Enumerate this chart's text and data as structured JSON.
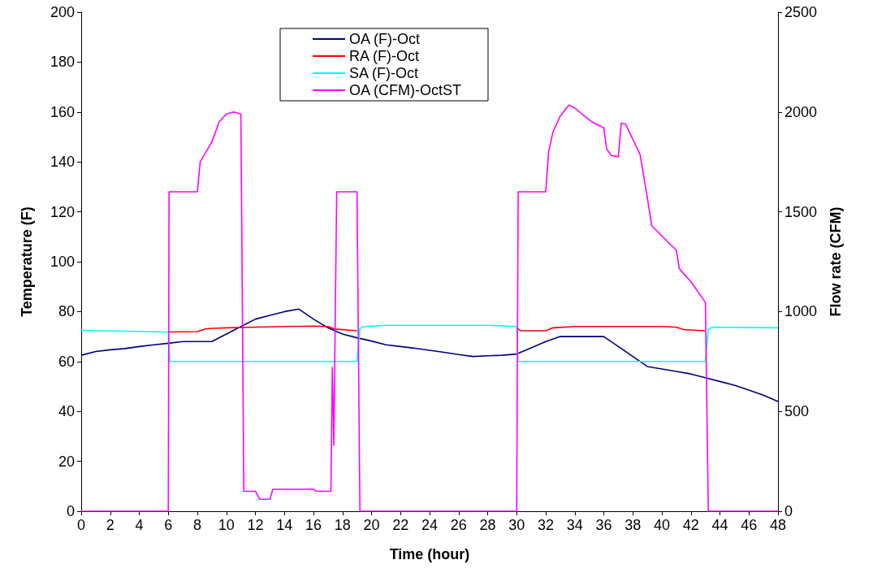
{
  "chart_data": {
    "type": "line",
    "xlabel": "Time (hour)",
    "ylabel": "Temperature (F)",
    "y2label": "Flow rate (CFM)",
    "xlim": [
      0,
      48
    ],
    "xticks": [
      0,
      2,
      4,
      6,
      8,
      10,
      12,
      14,
      16,
      18,
      20,
      22,
      24,
      26,
      28,
      30,
      32,
      34,
      36,
      38,
      40,
      42,
      44,
      46,
      48
    ],
    "ylim": [
      0,
      200
    ],
    "yticks": [
      0,
      20,
      40,
      60,
      80,
      100,
      120,
      140,
      160,
      180,
      200
    ],
    "y2lim": [
      0,
      2500
    ],
    "y2ticks": [
      0,
      500,
      1000,
      1500,
      2000,
      2500
    ],
    "grid": false,
    "legend": "top",
    "marker": "none",
    "line_style": "solid",
    "series": [
      {
        "name": "OA (F)-Oct",
        "color": "#000080",
        "x": [
          0,
          1,
          2,
          3,
          4,
          5,
          6,
          7,
          8,
          9,
          10,
          11,
          12,
          13,
          14,
          15,
          16,
          17,
          18,
          19,
          20,
          21,
          22,
          23,
          24,
          25,
          26,
          27,
          28,
          29,
          30,
          31,
          32,
          33,
          34,
          35,
          36,
          37,
          38,
          39,
          40,
          41,
          42,
          43,
          44,
          45,
          46,
          47,
          48
        ],
        "values": [
          62.5,
          64,
          64.7,
          65.2,
          66,
          66.7,
          67.3,
          68,
          68,
          68,
          71,
          74,
          77,
          78.5,
          80,
          81,
          77,
          73.5,
          71,
          69.5,
          68.2,
          66.7,
          66,
          65.3,
          64.5,
          63.7,
          62.8,
          62,
          62.3,
          62.5,
          63,
          65.5,
          68,
          70,
          70,
          70,
          70,
          66,
          62,
          58,
          57,
          56,
          55,
          53.5,
          52,
          50.5,
          48.5,
          46.5,
          44
        ]
      },
      {
        "name": "RA (F)-Oct",
        "color": "#ff0000",
        "x": [
          6,
          8,
          8.5,
          9,
          10,
          12,
          14,
          16,
          17,
          17.5,
          19,
          19.1,
          30,
          30.3,
          32,
          32.5,
          34,
          36,
          38,
          40,
          41,
          41.5,
          43
        ],
        "values": [
          71.8,
          72,
          73,
          73.3,
          73.5,
          73.8,
          74,
          74.2,
          74,
          73,
          72.3,
          null,
          73.5,
          72.3,
          72.3,
          73.5,
          74,
          74,
          74,
          74,
          73.8,
          72.8,
          72.3
        ]
      },
      {
        "name": "SA (F)-Oct",
        "color": "#00ffff",
        "x": [
          0,
          6,
          6.1,
          19,
          19.2,
          19.5,
          21,
          28,
          30,
          30.1,
          43,
          43.2,
          43.5,
          48
        ],
        "values": [
          72.5,
          71.8,
          60,
          60,
          73.3,
          74,
          74.5,
          74.5,
          74,
          60,
          60,
          73,
          73.8,
          73.5
        ]
      },
      {
        "name": "OA (CFM)-OctST",
        "color": "#ff00ff",
        "axis": "y2",
        "x": [
          0,
          6,
          6.05,
          8,
          8.2,
          9,
          9.5,
          10,
          10.5,
          11,
          11.2,
          12,
          12.3,
          13,
          13.2,
          16,
          16.2,
          17.2,
          17.3,
          17.4,
          17.6,
          19,
          19.2,
          30,
          30.1,
          32,
          32.2,
          32.5,
          33,
          33.6,
          34,
          34.5,
          35.2,
          36,
          36.2,
          36.5,
          37,
          37.2,
          37.5,
          38.5,
          39,
          39.3,
          41,
          41.2,
          42,
          43,
          43.2,
          48
        ],
        "values": [
          0,
          0,
          1600,
          1600,
          1750,
          1850,
          1950,
          1990,
          2000,
          1990,
          100,
          100,
          60,
          60,
          110,
          110,
          100,
          100,
          720,
          330,
          1600,
          1600,
          0,
          0,
          1600,
          1600,
          1800,
          1900,
          1980,
          2035,
          2020,
          1990,
          1950,
          1920,
          1815,
          1783,
          1775,
          1943,
          1940,
          1787,
          1571,
          1430,
          1307,
          1215,
          1150,
          1046,
          0,
          0
        ]
      }
    ]
  }
}
